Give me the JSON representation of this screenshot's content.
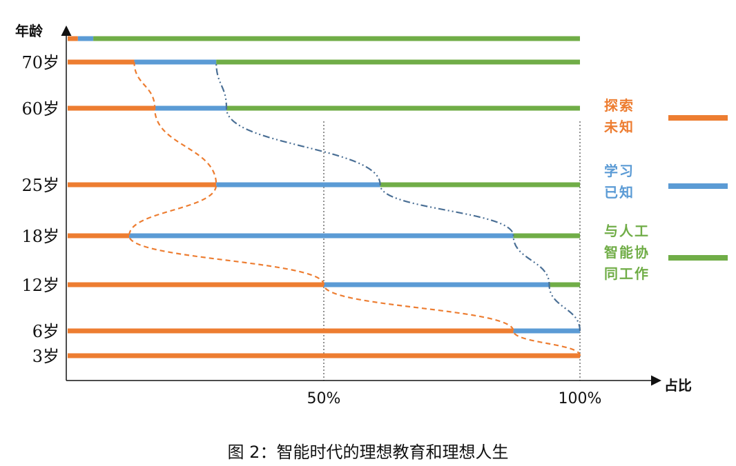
{
  "caption": "图 2：智能时代的理想教育和理想人生",
  "chart_data": {
    "type": "bar",
    "orientation": "horizontal",
    "stacked": true,
    "y_axis_title": "年龄",
    "x_axis_title": "占比",
    "x_ticks": [
      "50%",
      "100%"
    ],
    "categories": [
      "",
      "70岁",
      "60岁",
      "25岁",
      "18岁",
      "12岁",
      "6岁",
      "3岁"
    ],
    "series": [
      {
        "name": "探索未知",
        "legend_lines": [
          "探索",
          "未知"
        ],
        "color": "#ED7D31",
        "values": [
          2,
          13,
          17,
          29,
          12,
          50,
          87,
          100
        ]
      },
      {
        "name": "学习已知",
        "legend_lines": [
          "学习",
          "已知"
        ],
        "color": "#5B9BD5",
        "values": [
          3,
          16,
          14,
          32,
          75,
          44,
          13,
          0
        ]
      },
      {
        "name": "与人工智能协同工作",
        "legend_lines": [
          "与人工",
          "智能协",
          "同工作"
        ],
        "color": "#70AD47",
        "values": [
          95,
          71,
          69,
          39,
          13,
          6,
          0,
          0
        ]
      }
    ],
    "gridlines_x": [
      50,
      100
    ],
    "xlim": [
      0,
      100
    ],
    "legend_position": "right"
  }
}
